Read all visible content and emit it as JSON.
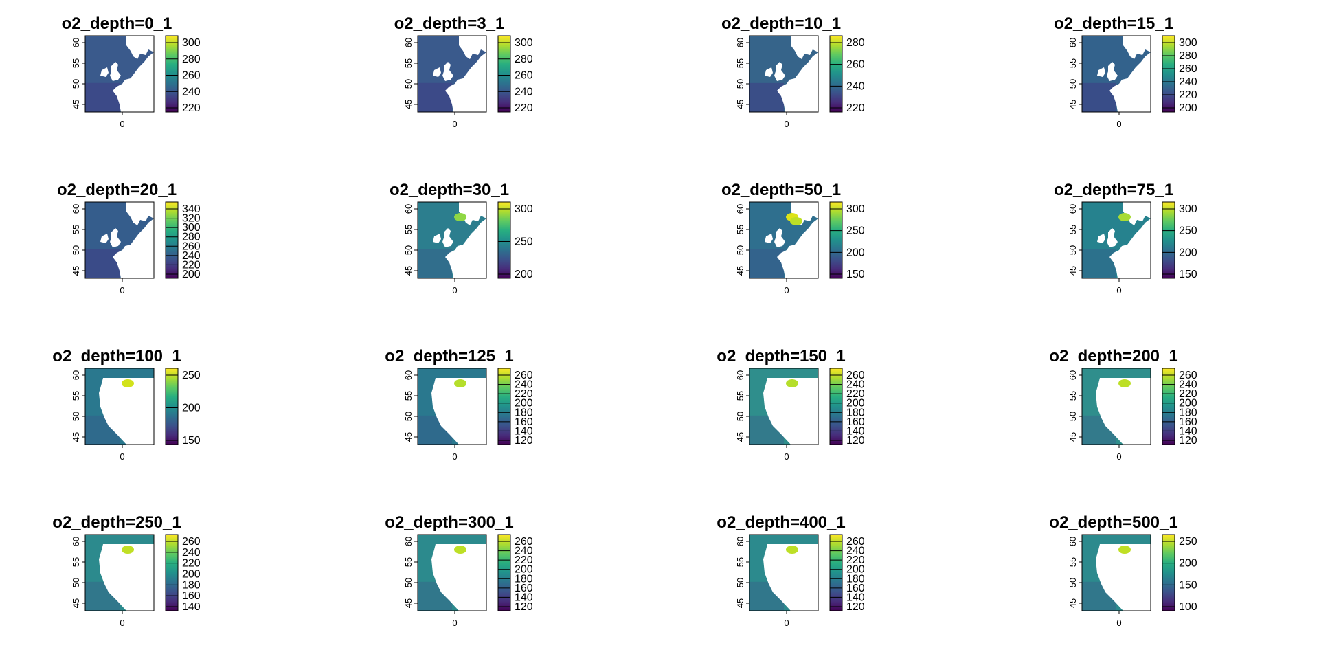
{
  "panels": [
    {
      "title": "o2_depth=0_1",
      "colorbar": {
        "ticks": [
          "300",
          "280",
          "260",
          "240",
          "220"
        ]
      },
      "sea": "#3a5a8c",
      "spots": []
    },
    {
      "title": "o2_depth=3_1",
      "colorbar": {
        "ticks": [
          "300",
          "280",
          "260",
          "240",
          "220"
        ]
      },
      "sea": "#3a5a8c",
      "spots": []
    },
    {
      "title": "o2_depth=10_1",
      "colorbar": {
        "ticks": [
          "280",
          "260",
          "240",
          "220"
        ]
      },
      "sea": "#36648a",
      "spots": []
    },
    {
      "title": "o2_depth=15_1",
      "colorbar": {
        "ticks": [
          "300",
          "280",
          "260",
          "240",
          "220",
          "200"
        ]
      },
      "sea": "#33628c",
      "spots": []
    },
    {
      "title": "o2_depth=20_1",
      "colorbar": {
        "ticks": [
          "340",
          "320",
          "300",
          "280",
          "260",
          "240",
          "220",
          "200"
        ]
      },
      "sea": "#355d8c",
      "spots": []
    },
    {
      "title": "o2_depth=30_1",
      "colorbar": {
        "ticks": [
          "300",
          "250",
          "200"
        ]
      },
      "sea": "#2c7e8e",
      "spots": [
        "#8fd744"
      ]
    },
    {
      "title": "o2_depth=50_1",
      "colorbar": {
        "ticks": [
          "300",
          "250",
          "200",
          "150"
        ]
      },
      "sea": "#2f6f8e",
      "spots": [
        "#dde318",
        "#bddf26"
      ]
    },
    {
      "title": "o2_depth=75_1",
      "colorbar": {
        "ticks": [
          "300",
          "250",
          "200",
          "150"
        ]
      },
      "sea": "#26828e",
      "spots": [
        "#a8db34"
      ]
    },
    {
      "title": "o2_depth=100_1",
      "colorbar": {
        "ticks": [
          "250",
          "200",
          "150"
        ]
      },
      "sea": "#2a788e",
      "spots": [
        "#d2e21b"
      ]
    },
    {
      "title": "o2_depth=125_1",
      "colorbar": {
        "ticks": [
          "260",
          "240",
          "220",
          "200",
          "180",
          "160",
          "140",
          "120"
        ]
      },
      "sea": "#2a788e",
      "spots": [
        "#b5de2b"
      ]
    },
    {
      "title": "o2_depth=150_1",
      "colorbar": {
        "ticks": [
          "260",
          "240",
          "220",
          "200",
          "180",
          "160",
          "140",
          "120"
        ]
      },
      "sea": "#2f8e8c",
      "spots": [
        "#b5de2b"
      ]
    },
    {
      "title": "o2_depth=200_1",
      "colorbar": {
        "ticks": [
          "260",
          "240",
          "220",
          "200",
          "180",
          "160",
          "140",
          "120"
        ]
      },
      "sea": "#2f8e8c",
      "spots": [
        "#bddf26"
      ]
    },
    {
      "title": "o2_depth=250_1",
      "colorbar": {
        "ticks": [
          "260",
          "240",
          "220",
          "200",
          "180",
          "160",
          "140"
        ]
      },
      "sea": "#2c8a8d",
      "spots": [
        "#c0df25"
      ]
    },
    {
      "title": "o2_depth=300_1",
      "colorbar": {
        "ticks": [
          "260",
          "240",
          "220",
          "200",
          "180",
          "160",
          "140",
          "120"
        ]
      },
      "sea": "#2c8a8d",
      "spots": [
        "#bddf26"
      ]
    },
    {
      "title": "o2_depth=400_1",
      "colorbar": {
        "ticks": [
          "260",
          "240",
          "220",
          "200",
          "180",
          "160",
          "140",
          "120"
        ]
      },
      "sea": "#2c8a8d",
      "spots": [
        "#bddf26"
      ]
    },
    {
      "title": "o2_depth=500_1",
      "colorbar": {
        "ticks": [
          "250",
          "200",
          "150",
          "100"
        ]
      },
      "sea": "#2c8a8d",
      "spots": [
        "#c0df25"
      ]
    }
  ],
  "axes": {
    "x_ticks": [
      "0"
    ],
    "y_ticks": [
      "60",
      "55",
      "50",
      "45"
    ]
  },
  "colormap": [
    "#440154",
    "#472d7b",
    "#3b528b",
    "#2c728e",
    "#21918c",
    "#28ae80",
    "#5ec962",
    "#addc30",
    "#fde725"
  ]
}
